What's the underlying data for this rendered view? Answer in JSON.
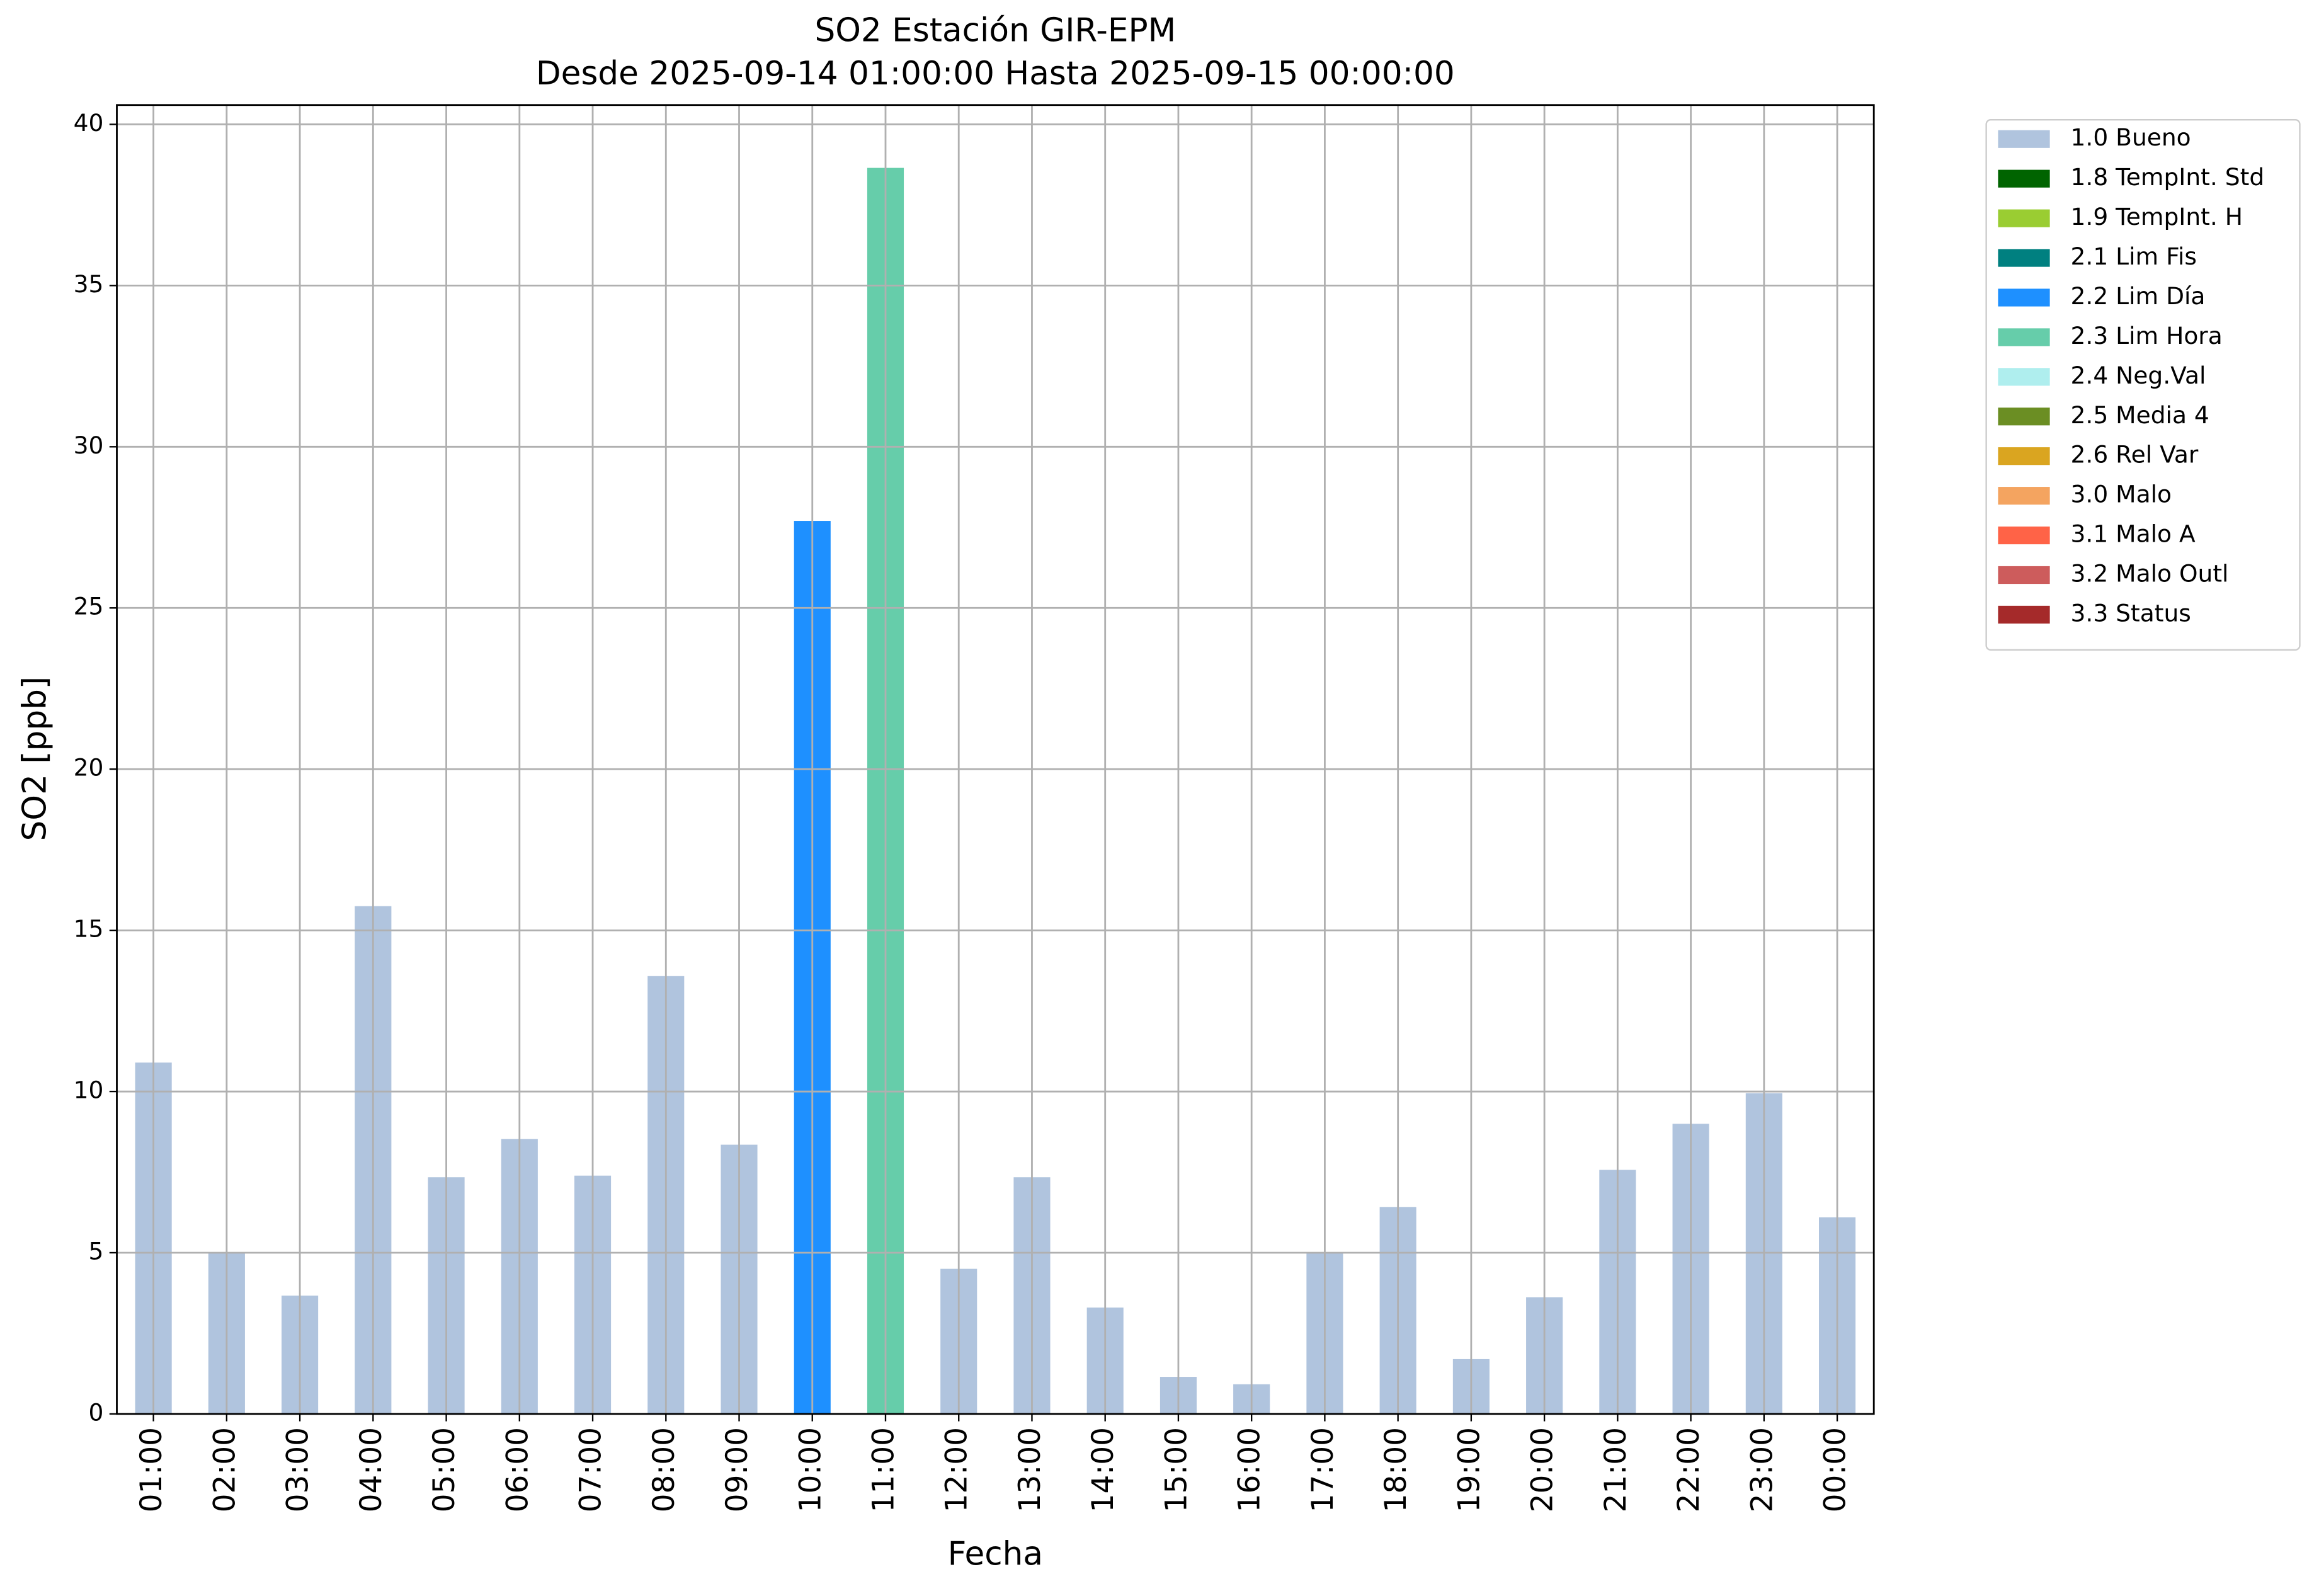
{
  "chart_data": {
    "type": "bar",
    "stacked": true,
    "title": "SO2 Estación GIR-EPM",
    "subtitle": "Desde 2025-09-14 01:00:00 Hasta 2025-09-15 00:00:00",
    "x_label": "Fecha",
    "y_label": "SO2 [ppb]",
    "categories": [
      "01:00",
      "02:00",
      "03:00",
      "04:00",
      "05:00",
      "06:00",
      "07:00",
      "08:00",
      "09:00",
      "10:00",
      "11:00",
      "12:00",
      "13:00",
      "14:00",
      "15:00",
      "16:00",
      "17:00",
      "18:00",
      "19:00",
      "20:00",
      "21:00",
      "22:00",
      "23:00",
      "00:00"
    ],
    "series": [
      {
        "name": "1.0 Bueno",
        "color": "#b0c4de",
        "values": [
          10.9,
          5.0,
          3.67,
          15.75,
          7.34,
          8.53,
          7.39,
          13.58,
          8.35,
          null,
          null,
          4.5,
          7.34,
          3.3,
          1.15,
          0.92,
          5.0,
          6.42,
          1.7,
          3.62,
          7.57,
          9.0,
          9.95,
          6.1
        ]
      },
      {
        "name": "1.8 TempInt. Std",
        "color": "#006400",
        "values": [
          null,
          null,
          null,
          null,
          null,
          null,
          null,
          null,
          null,
          null,
          null,
          null,
          null,
          null,
          null,
          null,
          null,
          null,
          null,
          null,
          null,
          null,
          null,
          null
        ]
      },
      {
        "name": "1.9 TempInt. H",
        "color": "#9acd32",
        "values": [
          null,
          null,
          null,
          null,
          null,
          null,
          null,
          null,
          null,
          null,
          null,
          null,
          null,
          null,
          null,
          null,
          null,
          null,
          null,
          null,
          null,
          null,
          null,
          null
        ]
      },
      {
        "name": "2.1 Lim Fis",
        "color": "#008080",
        "values": [
          null,
          null,
          null,
          null,
          null,
          null,
          null,
          null,
          null,
          null,
          null,
          null,
          null,
          null,
          null,
          null,
          null,
          null,
          null,
          null,
          null,
          null,
          null,
          null
        ]
      },
      {
        "name": "2.2 Lim Día",
        "color": "#1e90ff",
        "values": [
          null,
          null,
          null,
          null,
          null,
          null,
          null,
          null,
          null,
          27.7,
          null,
          null,
          null,
          null,
          null,
          null,
          null,
          null,
          null,
          null,
          null,
          null,
          null,
          null
        ]
      },
      {
        "name": "2.3 Lim Hora",
        "color": "#66cdaa",
        "values": [
          null,
          null,
          null,
          null,
          null,
          null,
          null,
          null,
          null,
          null,
          38.65,
          null,
          null,
          null,
          null,
          null,
          null,
          null,
          null,
          null,
          null,
          null,
          null,
          null
        ]
      },
      {
        "name": "2.4 Neg.Val",
        "color": "#afeeee",
        "values": [
          null,
          null,
          null,
          null,
          null,
          null,
          null,
          null,
          null,
          null,
          null,
          null,
          null,
          null,
          null,
          null,
          null,
          null,
          null,
          null,
          null,
          null,
          null,
          null
        ]
      },
      {
        "name": "2.5 Media 4",
        "color": "#6b8e23",
        "values": [
          null,
          null,
          null,
          null,
          null,
          null,
          null,
          null,
          null,
          null,
          null,
          null,
          null,
          null,
          null,
          null,
          null,
          null,
          null,
          null,
          null,
          null,
          null,
          null
        ]
      },
      {
        "name": "2.6 Rel Var",
        "color": "#daa520",
        "values": [
          null,
          null,
          null,
          null,
          null,
          null,
          null,
          null,
          null,
          null,
          null,
          null,
          null,
          null,
          null,
          null,
          null,
          null,
          null,
          null,
          null,
          null,
          null,
          null
        ]
      },
      {
        "name": "3.0 Malo",
        "color": "#f4a460",
        "values": [
          null,
          null,
          null,
          null,
          null,
          null,
          null,
          null,
          null,
          null,
          null,
          null,
          null,
          null,
          null,
          null,
          null,
          null,
          null,
          null,
          null,
          null,
          null,
          null
        ]
      },
      {
        "name": "3.1 Malo A",
        "color": "#ff6347",
        "values": [
          null,
          null,
          null,
          null,
          null,
          null,
          null,
          null,
          null,
          null,
          null,
          null,
          null,
          null,
          null,
          null,
          null,
          null,
          null,
          null,
          null,
          null,
          null,
          null
        ]
      },
      {
        "name": "3.2 Malo Outl",
        "color": "#cd5c5c",
        "values": [
          null,
          null,
          null,
          null,
          null,
          null,
          null,
          null,
          null,
          null,
          null,
          null,
          null,
          null,
          null,
          null,
          null,
          null,
          null,
          null,
          null,
          null,
          null,
          null
        ]
      },
      {
        "name": "3.3 Status",
        "color": "#a52a2a",
        "values": [
          null,
          null,
          null,
          null,
          null,
          null,
          null,
          null,
          null,
          null,
          null,
          null,
          null,
          null,
          null,
          null,
          null,
          null,
          null,
          null,
          null,
          null,
          null,
          null
        ]
      }
    ],
    "ylim": [
      0,
      40.6
    ],
    "yticks": [
      0,
      5,
      10,
      15,
      20,
      25,
      30,
      35,
      40
    ],
    "grid": true,
    "legend": "outside-upper-right"
  }
}
